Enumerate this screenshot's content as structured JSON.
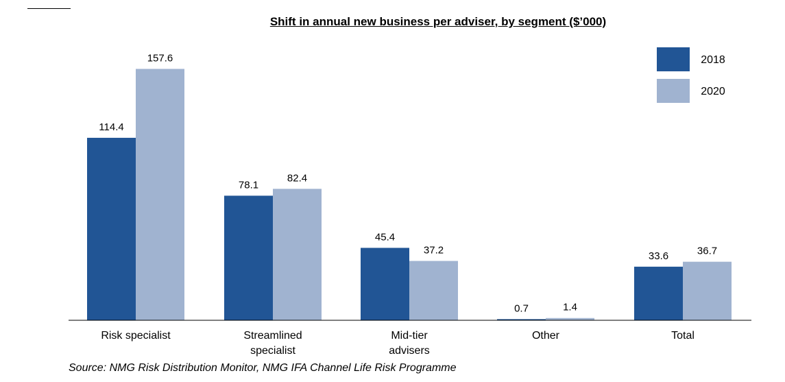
{
  "chart_data": {
    "type": "bar",
    "title": "Shift in annual new business per adviser, by segment ($’000)",
    "categories": [
      [
        "Risk specialist"
      ],
      [
        "Streamlined",
        "specialist"
      ],
      [
        "Mid-tier",
        "advisers"
      ],
      [
        "Other"
      ],
      [
        "Total"
      ]
    ],
    "series": [
      {
        "name": "2018",
        "color": "#215595",
        "values": [
          114.4,
          78.1,
          45.4,
          0.7,
          33.6
        ]
      },
      {
        "name": "2020",
        "color": "#A0B3D0",
        "values": [
          157.6,
          82.4,
          37.2,
          1.4,
          36.7
        ]
      }
    ],
    "ylim": [
      0,
      175
    ],
    "grid": false,
    "legend_position": "top-right",
    "source": "Source: NMG Risk Distribution Monitor, NMG IFA Channel Life Risk Programme"
  }
}
